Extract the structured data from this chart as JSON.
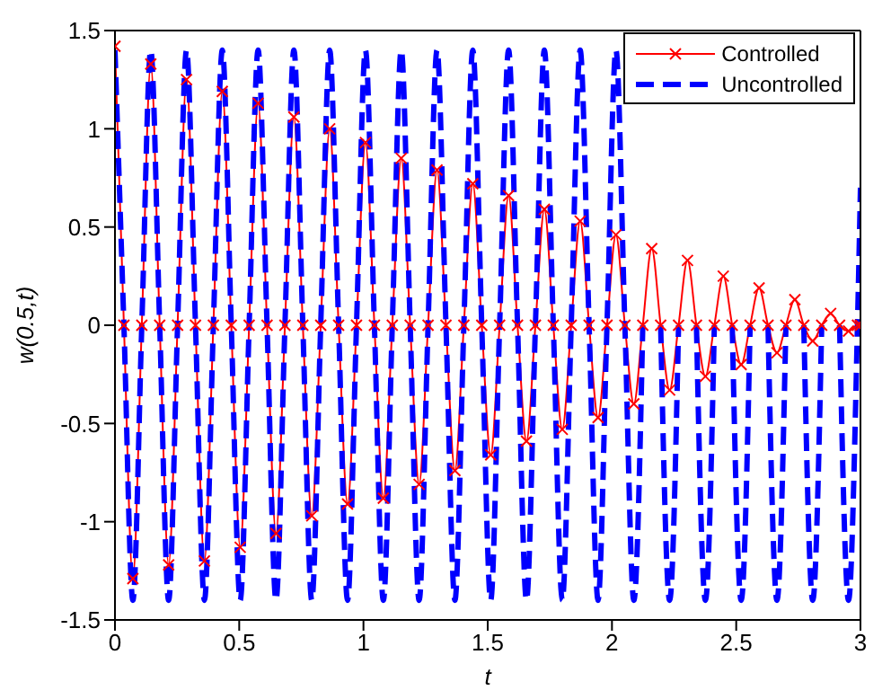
{
  "chart_data": {
    "type": "line",
    "xlabel": "t",
    "ylabel": "w(0.5,t)",
    "x": [
      0,
      0.036,
      0.072,
      0.108,
      0.144,
      0.18,
      0.216,
      0.252,
      0.288,
      0.324,
      0.36,
      0.396,
      0.432,
      0.468,
      0.504,
      0.54,
      0.576,
      0.612,
      0.648,
      0.684,
      0.72,
      0.756,
      0.792,
      0.828,
      0.864,
      0.9,
      0.936,
      0.972,
      1.008,
      1.044,
      1.08,
      1.116,
      1.152,
      1.188,
      1.224,
      1.26,
      1.296,
      1.332,
      1.368,
      1.404,
      1.44,
      1.476,
      1.512,
      1.548,
      1.584,
      1.62,
      1.656,
      1.692,
      1.728,
      1.764,
      1.8,
      1.836,
      1.872,
      1.908,
      1.944,
      1.98,
      2.016,
      2.052,
      2.088,
      2.124,
      2.16,
      2.196,
      2.232,
      2.268,
      2.304,
      2.34,
      2.376,
      2.412,
      2.448,
      2.484,
      2.52,
      2.556,
      2.592,
      2.628,
      2.664,
      2.7,
      2.736,
      2.772,
      2.808,
      2.844,
      2.88,
      2.916,
      2.952,
      2.988,
      3
    ],
    "series": [
      {
        "name": "Controlled",
        "color": "#ff0000",
        "marker": "cross",
        "line_style": "solid",
        "values": [
          1.42,
          0,
          -1.29,
          0,
          1.33,
          0,
          -1.22,
          0,
          1.25,
          0,
          -1.2,
          0,
          1.19,
          0,
          -1.13,
          0,
          1.13,
          0,
          -1.06,
          0,
          1.06,
          0,
          -0.97,
          0,
          1.0,
          0,
          -0.91,
          0,
          0.93,
          0,
          -0.88,
          0,
          0.85,
          0,
          -0.81,
          0,
          0.79,
          0,
          -0.74,
          0,
          0.72,
          0,
          -0.66,
          0,
          0.66,
          0,
          -0.59,
          0,
          0.59,
          0,
          -0.53,
          0,
          0.53,
          0,
          -0.47,
          0,
          0.46,
          0,
          -0.4,
          0,
          0.39,
          0,
          -0.33,
          0,
          0.33,
          0,
          -0.26,
          0,
          0.25,
          0,
          -0.2,
          0,
          0.19,
          0,
          -0.14,
          0,
          0.13,
          0,
          -0.08,
          0,
          0.06,
          0,
          -0.03,
          0,
          0
        ]
      },
      {
        "name": "Uncontrolled",
        "color": "#0000ff",
        "marker": "none",
        "line_style": "dashed",
        "values": [
          1.4,
          0,
          -1.4,
          0,
          1.4,
          0,
          -1.4,
          0,
          1.4,
          0,
          -1.4,
          0,
          1.4,
          0,
          -1.4,
          0,
          1.4,
          0,
          -1.4,
          0,
          1.4,
          0,
          -1.4,
          0,
          1.4,
          0,
          -1.4,
          0,
          1.4,
          0,
          -1.4,
          0,
          1.4,
          0,
          -1.4,
          0,
          1.4,
          0,
          -1.4,
          0,
          1.4,
          0,
          -1.4,
          0,
          1.4,
          0,
          -1.4,
          0,
          1.4,
          0,
          -1.4,
          0,
          1.4,
          0,
          -1.4,
          0,
          1.4,
          0,
          -1.4,
          0,
          null,
          0,
          -1.4,
          0,
          null,
          0,
          -1.4,
          0,
          null,
          0,
          -1.4,
          0,
          null,
          0,
          -1.4,
          0,
          null,
          0,
          -1.4,
          0,
          null,
          0,
          -1.4,
          0,
          0.7
        ]
      }
    ],
    "xlim": [
      0,
      3
    ],
    "xticks": [
      0,
      0.5,
      1,
      1.5,
      2,
      2.5,
      3
    ],
    "ylim": [
      -1.5,
      1.5
    ],
    "yticks": [
      -1.5,
      -1,
      -0.5,
      0,
      0.5,
      1,
      1.5
    ],
    "grid": false,
    "legend": "top right"
  }
}
